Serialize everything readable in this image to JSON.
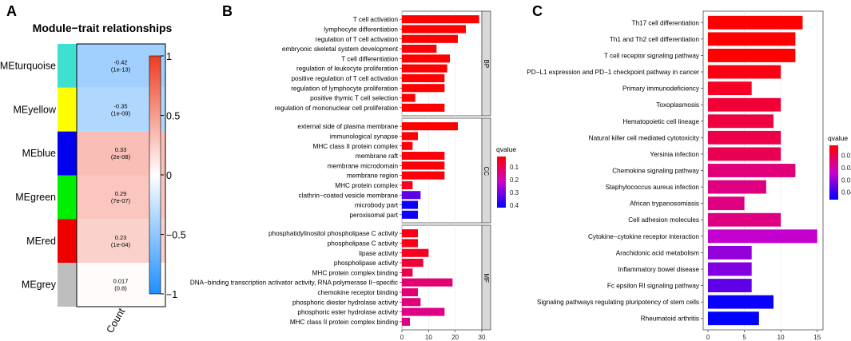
{
  "panel_labels": [
    "A",
    "B",
    "C"
  ],
  "chart_data": [
    {
      "type": "heatmap",
      "title": "Module−trait relationships",
      "xlabel": "Count",
      "rows": [
        "MEturquoise",
        "MEyellow",
        "MEblue",
        "MEgreen",
        "MEred",
        "MEgrey"
      ],
      "module_colors": [
        "#40e0d0",
        "#ffff00",
        "#0000ee",
        "#00ee00",
        "#ee0000",
        "#bebebe"
      ],
      "values": [
        -0.42,
        -0.35,
        0.33,
        0.29,
        0.23,
        0.017
      ],
      "value_labels": [
        "-0.42",
        "-0.35",
        "0.33",
        "0.29",
        "0.23",
        "0.017"
      ],
      "pvalue_labels": [
        "(1e-13)",
        "(1e-09)",
        "(2e-08)",
        "(7e-07)",
        "(1e-04)",
        "(0.8)"
      ],
      "colorscale": {
        "range": [
          -1,
          1
        ],
        "ticks": [
          "1",
          "0.5",
          "0",
          "−0.5",
          "−1"
        ],
        "low": "#1e90ff",
        "mid": "#ffffff",
        "high": "#ee3b1e"
      }
    },
    {
      "type": "bar",
      "orientation": "horizontal",
      "xlim": [
        0,
        30
      ],
      "xticks": [
        "0",
        "10",
        "20",
        "30"
      ],
      "legend": {
        "title": "qvalue",
        "ticks": [
          "0.1",
          "0.2",
          "0.3",
          "0.4"
        ],
        "range": [
          0.02,
          0.42
        ]
      },
      "facets": [
        {
          "name": "BP",
          "categories": [
            "T cell activation",
            "lymphocyte differentiation",
            "regulation of T cell activation",
            "embryonic skeletal system development",
            "T cell differentiation",
            "regulation of leukocyte proliferation",
            "positive regulation of T cell activation",
            "regulation of lymphocyte proliferation",
            "positive thymic T cell selection",
            "regulation of mononuclear cell proliferation"
          ],
          "values": [
            29,
            24,
            21,
            13,
            18,
            17,
            16,
            16,
            5,
            16
          ],
          "qvalues": [
            0.02,
            0.02,
            0.02,
            0.03,
            0.02,
            0.02,
            0.02,
            0.02,
            0.02,
            0.02
          ]
        },
        {
          "name": "CC",
          "categories": [
            "external side of plasma membrane",
            "immunological synapse",
            "MHC class II protein complex",
            "membrane raft",
            "membrane microdomain",
            "membrane region",
            "MHC protein complex",
            "clathrin−coated vesicle membrane",
            "microbody part",
            "peroxisomal part"
          ],
          "values": [
            21,
            6,
            4,
            16,
            16,
            16,
            4,
            7,
            6,
            6
          ],
          "qvalues": [
            0.02,
            0.03,
            0.03,
            0.03,
            0.03,
            0.03,
            0.05,
            0.33,
            0.41,
            0.41
          ]
        },
        {
          "name": "MF",
          "categories": [
            "phosphatidylinositol phospholipase C activity",
            "phospholipase C activity",
            "lipase activity",
            "phospholipase activity",
            "MHC protein complex binding",
            "DNA−binding transcription activator activity, RNA polymerase II−specific",
            "chemokine receptor binding",
            "phosphoric diester hydrolase activity",
            "phosphoric ester hydrolase activity",
            "MHC class II protein complex binding"
          ],
          "values": [
            6,
            6,
            10,
            8,
            4,
            19,
            6,
            7,
            16,
            3
          ],
          "qvalues": [
            0.04,
            0.04,
            0.05,
            0.07,
            0.09,
            0.13,
            0.13,
            0.14,
            0.15,
            0.15
          ]
        }
      ]
    },
    {
      "type": "bar",
      "orientation": "horizontal",
      "xlim": [
        0,
        15
      ],
      "xticks": [
        "0",
        "5",
        "10",
        "15"
      ],
      "legend": {
        "title": "qvalue",
        "ticks": [
          "0.01",
          "0.02",
          "0.03",
          "0.04"
        ],
        "range": [
          0.002,
          0.046
        ]
      },
      "categories": [
        "Th17 cell differentiation",
        "Th1 and Th2 cell differentiation",
        "T cell receptor signaling pathway",
        "PD−L1 expression and PD−1 checkpoint pathway in cancer",
        "Primary immunodeficiency",
        "Toxoplasmosis",
        "Hematopoietic cell lineage",
        "Natural killer cell mediated cytotoxicity",
        "Yersinia infection",
        "Chemokine signaling pathway",
        "Staphylococcus aureus infection",
        "African trypanosomiasis",
        "Cell adhesion molecules",
        "Cytokine−cytokine receptor interaction",
        "Arachidonic acid metabolism",
        "Inflammatory bowel disease",
        "Fc epsilon RI signaling pathway",
        "Signaling pathways regulating pluripotency of stem cells",
        "Rheumatoid arthritis"
      ],
      "values": [
        13,
        12,
        12,
        10,
        6,
        10,
        9,
        10,
        10,
        12,
        8,
        5,
        10,
        15,
        6,
        6,
        6,
        9,
        7
      ],
      "qvalues": [
        0.002,
        0.002,
        0.002,
        0.004,
        0.006,
        0.008,
        0.009,
        0.01,
        0.011,
        0.015,
        0.016,
        0.016,
        0.016,
        0.025,
        0.03,
        0.032,
        0.036,
        0.045,
        0.046
      ]
    }
  ]
}
